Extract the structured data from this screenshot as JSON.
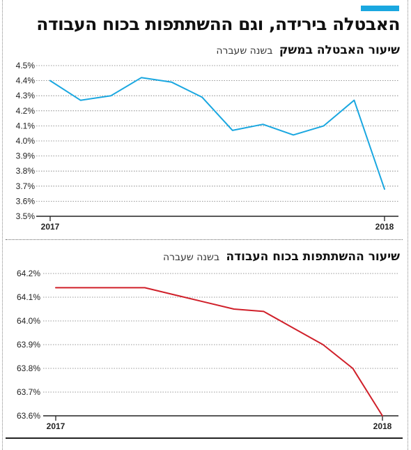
{
  "header": {
    "headline": "האבטלה בירידה, וגם ההשתתפות בכוח העבודה",
    "accent_color": "#1aa7e0"
  },
  "charts_text": {
    "chart1_title_strong": "שיעור האבטלה במשק",
    "chart1_title_light": "בשנה שעברה",
    "chart2_title_strong": "שיעור ההשתתפות בכוח העבודה",
    "chart2_title_light": "בשנה שעברה"
  },
  "chart_data": [
    {
      "type": "line",
      "title": "שיעור האבטלה במשק בשנה שעברה",
      "x_labels": [
        "2017",
        "2018"
      ],
      "ylim": [
        3.5,
        4.5
      ],
      "yticks": [
        3.5,
        3.6,
        3.7,
        3.8,
        3.9,
        4.0,
        4.1,
        4.2,
        4.3,
        4.4,
        4.5
      ],
      "ytick_labels": [
        "3.5%",
        "3.6%",
        "3.7%",
        "3.8%",
        "3.9%",
        "4.0%",
        "4.1%",
        "4.2%",
        "4.3%",
        "4.4%",
        "4.5%"
      ],
      "grid": true,
      "color": "#1aa7e0",
      "series": [
        {
          "values": [
            4.4,
            4.27,
            4.3,
            4.42,
            4.39,
            4.29,
            4.07,
            4.11,
            4.04,
            4.1,
            4.27,
            3.68
          ]
        }
      ]
    },
    {
      "type": "line",
      "title": "שיעור ההשתתפות בכוח העבודה בשנה שעברה",
      "x_labels": [
        "2017",
        "2018"
      ],
      "ylim": [
        63.6,
        64.2
      ],
      "yticks": [
        63.6,
        63.7,
        63.8,
        63.9,
        64.0,
        64.1,
        64.2
      ],
      "ytick_labels": [
        "63.6%",
        "63.7%",
        "63.8%",
        "63.9%",
        "64.0%",
        "64.1%",
        "64.2%"
      ],
      "grid": true,
      "color": "#d0202a",
      "series": [
        {
          "values": [
            64.14,
            64.14,
            64.14,
            64.14,
            64.11,
            64.08,
            64.05,
            64.04,
            63.97,
            63.9,
            63.8,
            63.6
          ]
        }
      ]
    }
  ]
}
